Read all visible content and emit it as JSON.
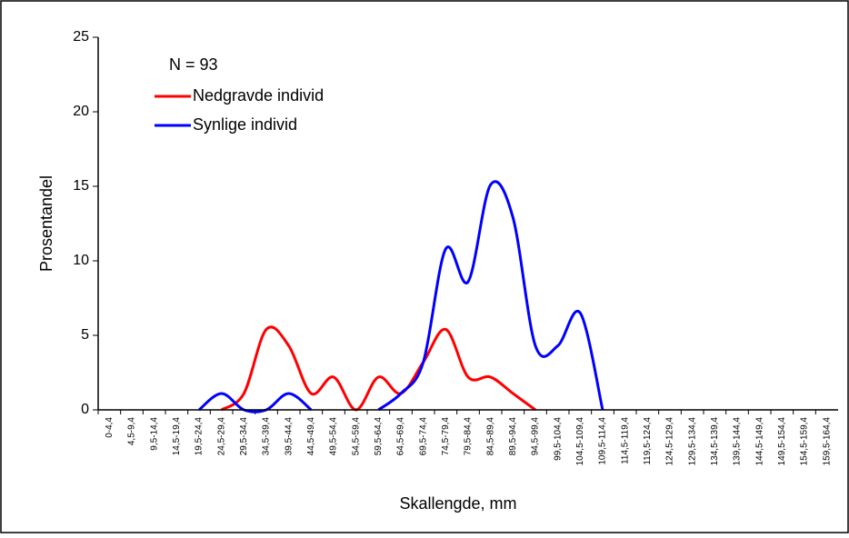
{
  "chart_data": {
    "type": "line",
    "x_label": "Skallengde, mm",
    "y_label": "Prosentandel",
    "annotation": "N = 93",
    "categories": [
      "0-4,4",
      "4,5-9,4",
      "9,5-14,4",
      "14,5-19,4",
      "19,5-24,4",
      "24,5-29,4",
      "29,5-34,4",
      "34,5-39,4",
      "39,5-44,4",
      "44,5-49,4",
      "49,5-54,4",
      "54,5-59,4",
      "59,5-64,4",
      "64,5-69,4",
      "69,5-74,4",
      "74,5-79,4",
      "79,5-84,4",
      "84,5-89,4",
      "89,5-94,4",
      "94,5-99,4",
      "99,5-104,4",
      "104,5-109,4",
      "109,5-114,4",
      "114,5-119,4",
      "119,5-124,4",
      "124,5-129,4",
      "129,5-134,4",
      "134,5-139,4",
      "139,5-144,4",
      "144,5-149,4",
      "149,5-154,4",
      "154,5-159,4",
      "159,5-164,4"
    ],
    "series": [
      {
        "name": "Nedgravde individ",
        "color": "#ff0000",
        "values": [
          null,
          null,
          null,
          null,
          null,
          0,
          1.1,
          5.4,
          4.3,
          1.1,
          2.2,
          0,
          2.2,
          1.1,
          3.2,
          5.4,
          2.2,
          2.2,
          1.1,
          0,
          null,
          null,
          null,
          null,
          null,
          null,
          null,
          null,
          null,
          null,
          null,
          null,
          null
        ]
      },
      {
        "name": "Synlige individ",
        "color": "#0000ff",
        "values": [
          null,
          null,
          null,
          null,
          0,
          1.1,
          0,
          0,
          1.1,
          0,
          null,
          null,
          0,
          1.1,
          3.2,
          10.8,
          8.6,
          15.1,
          12.9,
          4.3,
          4.3,
          6.5,
          0,
          null,
          null,
          null,
          null,
          null,
          null,
          null,
          null,
          null,
          null
        ]
      }
    ],
    "ylim": [
      0,
      25
    ],
    "yticks": [
      0,
      5,
      10,
      15,
      20,
      25
    ],
    "smooth": true
  }
}
